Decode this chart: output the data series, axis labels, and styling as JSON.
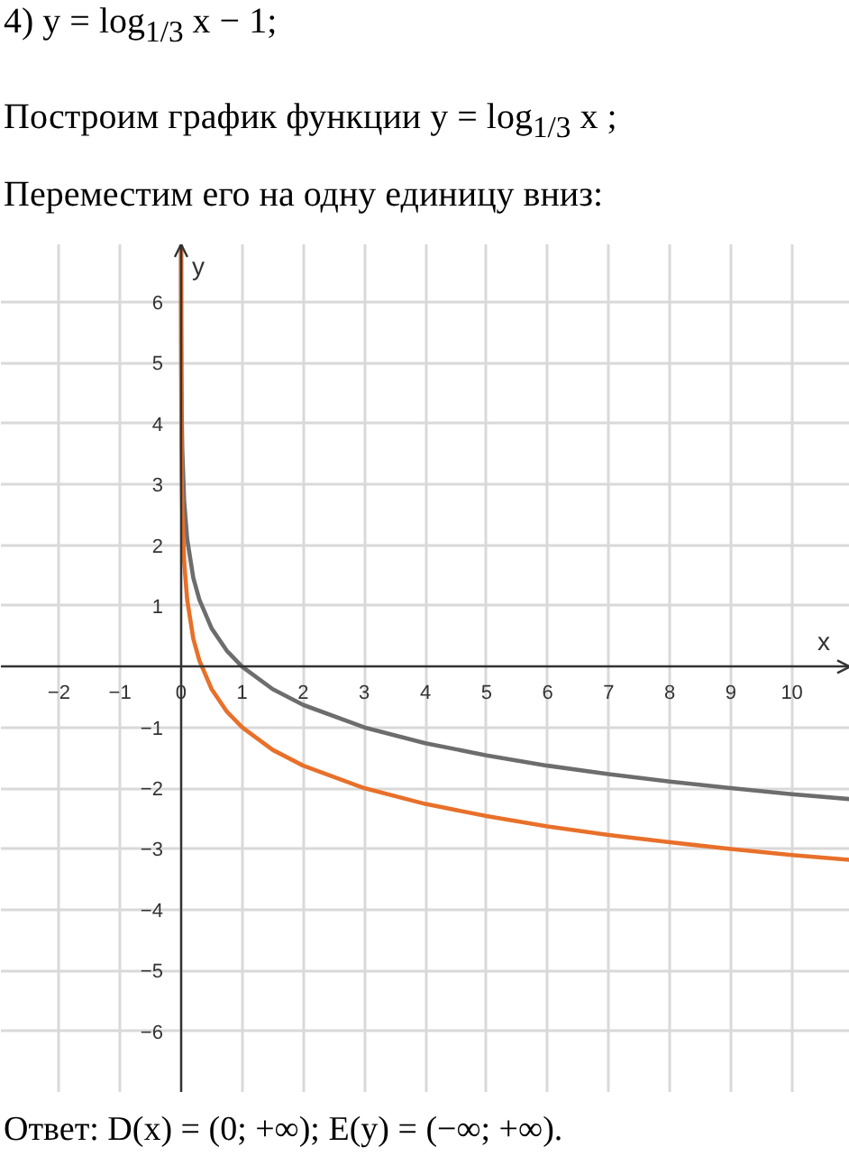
{
  "chart_data": {
    "type": "line",
    "title": "4) y = log$_{1/3}$ x − 1;",
    "subtitle": "Построим график функции y = log$_{1/3}$ x ;\nПереместим его на одну единицу вниз:",
    "xlabel": "x",
    "ylabel": "y",
    "annotations": [
      "Ответ: D(x) = (0; +∞); E(y) = (−∞; +∞)."
    ],
    "xlim": [
      -2.95,
      10.95
    ],
    "ylim": [
      -7,
      6.95
    ],
    "xticks": [
      -2,
      -1,
      0,
      1,
      2,
      3,
      4,
      5,
      6,
      7,
      8,
      9,
      10
    ],
    "yticks": [
      -6,
      -5,
      -4,
      -3,
      -2,
      -1,
      1,
      2,
      3,
      4,
      5,
      6
    ],
    "grid": true,
    "series": [
      {
        "color": "#6d6d6d",
        "x": [
          0.0005,
          0.001,
          0.002,
          0.005,
          0.01,
          0.02,
          0.05,
          0.1,
          0.2,
          0.3,
          0.5,
          0.75,
          1,
          1.5,
          2,
          3,
          4,
          5,
          6,
          7,
          8,
          9,
          10,
          10.95
        ],
        "values": [
          6.92,
          6.29,
          5.66,
          4.82,
          4.19,
          3.56,
          2.73,
          2.1,
          1.46,
          1.1,
          0.63,
          0.26,
          0,
          -0.37,
          -0.63,
          -1,
          -1.26,
          -1.46,
          -1.63,
          -1.77,
          -1.89,
          -2,
          -2.1,
          -2.18
        ]
      },
      {
        "color": "#e8702a",
        "x": [
          0.00017,
          0.0005,
          0.001,
          0.002,
          0.005,
          0.01,
          0.02,
          0.05,
          0.1,
          0.2,
          0.3,
          0.5,
          0.75,
          1,
          1.5,
          2,
          3,
          4,
          5,
          6,
          7,
          8,
          9,
          10,
          10.95
        ],
        "values": [
          6.9,
          5.92,
          5.29,
          4.66,
          3.82,
          3.19,
          2.56,
          1.73,
          1.1,
          0.46,
          0.1,
          -0.37,
          -0.74,
          -1,
          -1.37,
          -1.63,
          -2,
          -2.26,
          -2.46,
          -2.63,
          -2.77,
          -2.89,
          -3,
          -3.1,
          -3.18
        ]
      }
    ]
  }
}
